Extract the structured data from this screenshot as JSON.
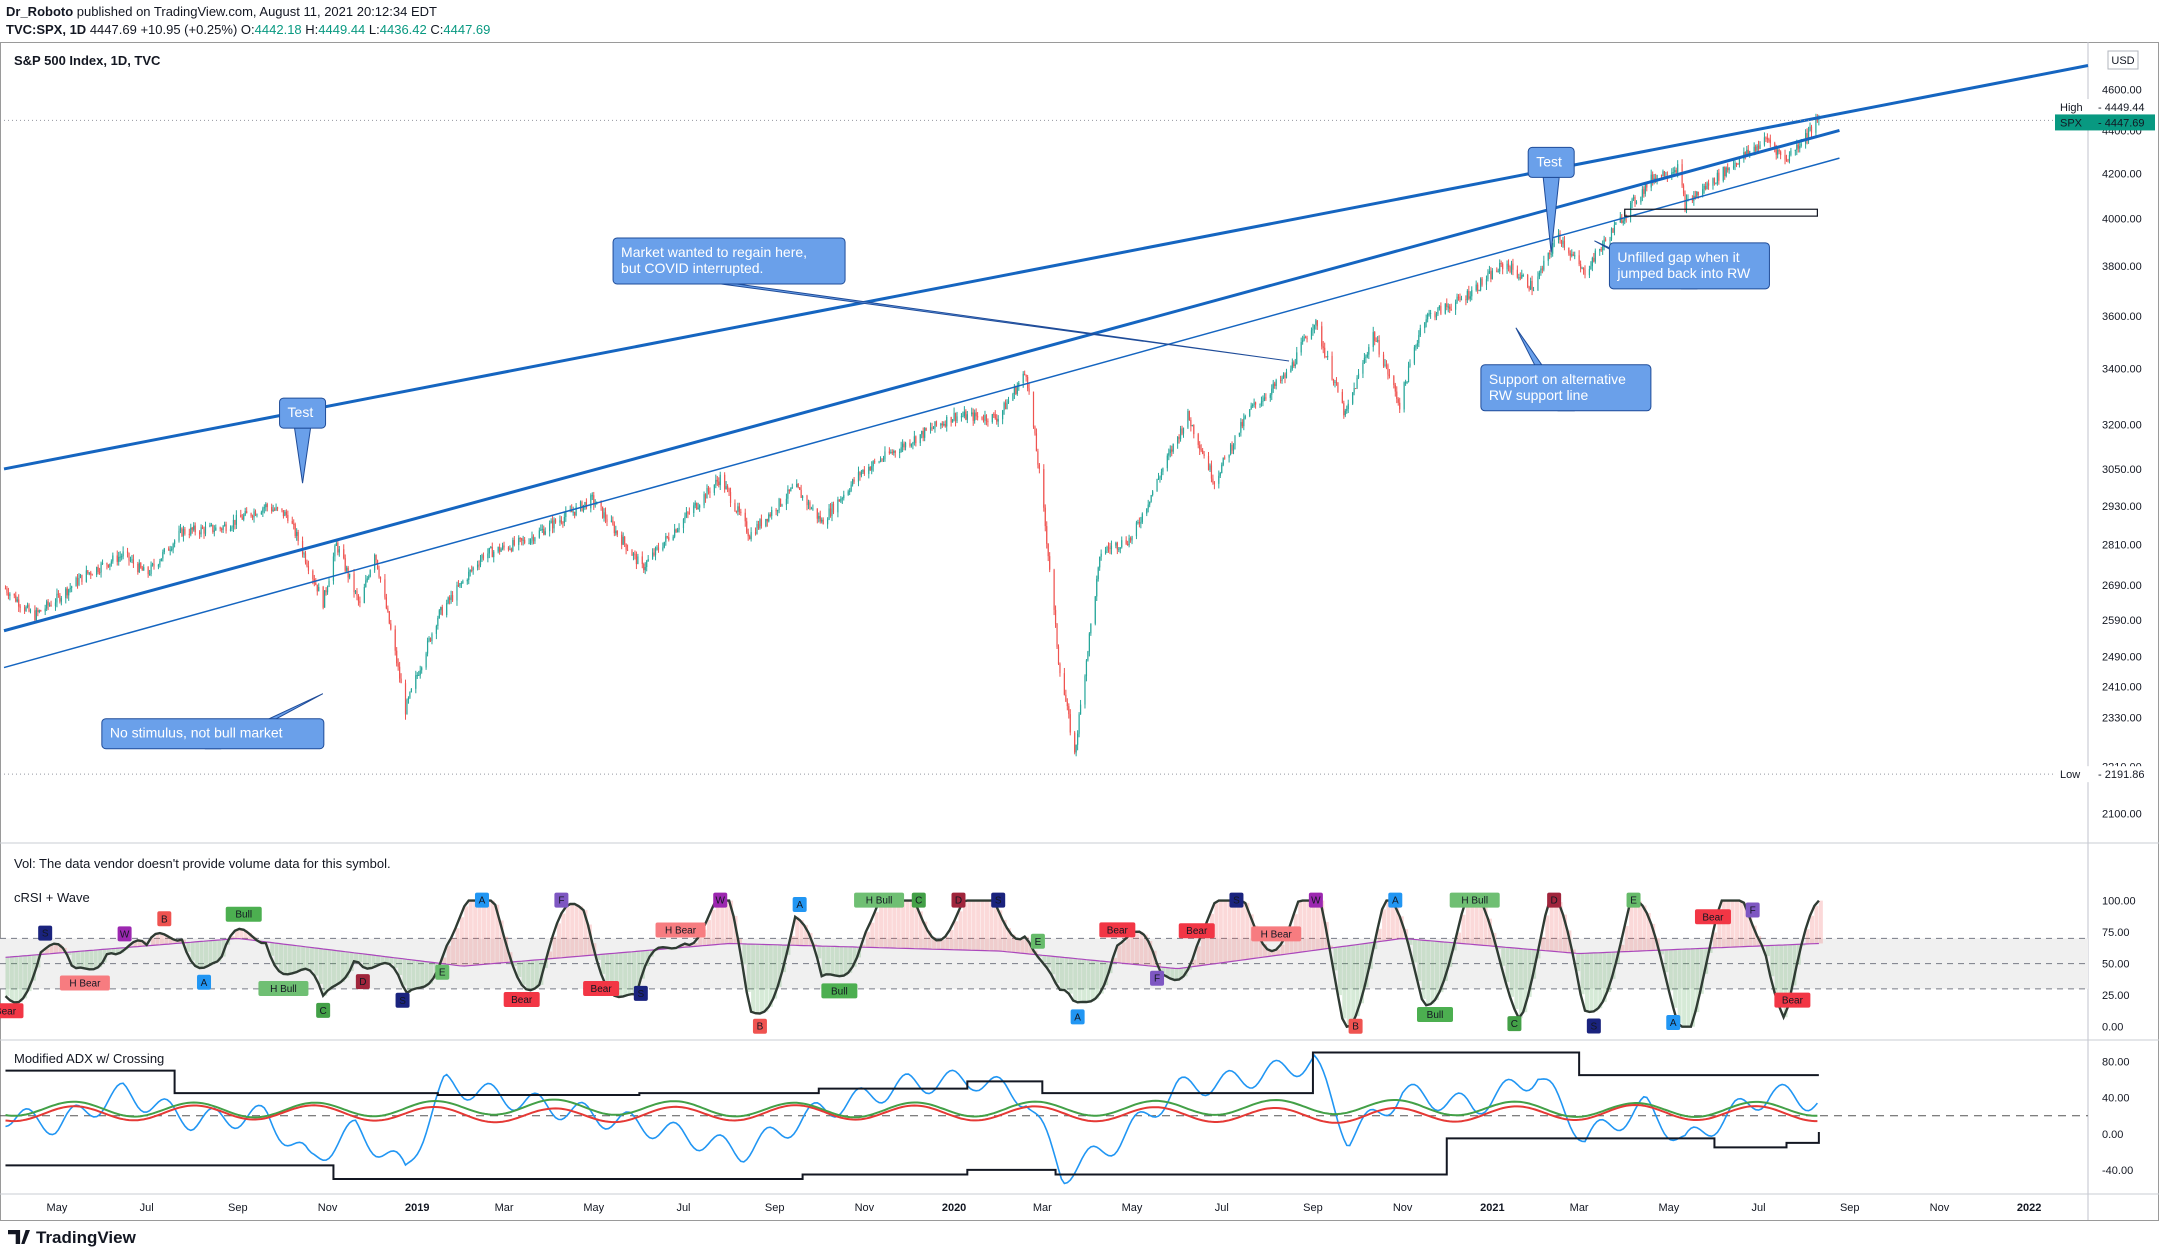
{
  "header": {
    "author": "Dr_Roboto",
    "published": "published on TradingView.com, August 11, 2021 20:12:34 EDT",
    "symbol": "TVC:SPX, 1D",
    "last": "4447.69",
    "change": "+10.95 (+0.25%)",
    "o_label": "O:",
    "o": "4442.18",
    "h_label": "H:",
    "h": "4449.44",
    "l_label": "L:",
    "l": "4436.42",
    "c_label": "C:",
    "c": "4447.69"
  },
  "footer": {
    "logo": "TradingView"
  },
  "colors": {
    "up": "#26a69a",
    "down": "#ef5350",
    "trend": "#1565c0",
    "annotation": "#6aa0ea",
    "price_tag": "#089981",
    "crsi_line": "#2f3b33",
    "adx_blue": "#2196f3",
    "adx_green": "#43a047",
    "adx_red": "#e53935"
  },
  "chart_data": [
    {
      "type": "line",
      "title": "S&P 500 Index, 1D, TVC",
      "currency": "USD",
      "y_scale": "log",
      "ylim": [
        2050,
        4800
      ],
      "y_ticks": [
        2100,
        2210,
        2330,
        2410,
        2490,
        2590,
        2690,
        2810,
        2930,
        3050,
        3200,
        3400,
        3600,
        3800,
        4000,
        4200,
        4400,
        4600
      ],
      "y_tick_labels": [
        "2100.00",
        "2210.00",
        "2330.00",
        "2410.00",
        "2490.00",
        "2590.00",
        "2690.00",
        "2810.00",
        "2930.00",
        "3050.00",
        "3200.00",
        "3400.00",
        "3600.00",
        "3800.00",
        "4000.00",
        "4200.00",
        "4400.00",
        "4600.00"
      ],
      "x_tick_labels": [
        "May",
        "Jul",
        "Sep",
        "Nov",
        "2019",
        "Mar",
        "May",
        "Jul",
        "Sep",
        "Nov",
        "2020",
        "Mar",
        "May",
        "Jul",
        "Sep",
        "Nov",
        "2021",
        "Mar",
        "May",
        "Jul",
        "Sep",
        "Nov",
        "2022"
      ],
      "x_tick_dates": [
        "2018-05-01",
        "2018-07-01",
        "2018-09-01",
        "2018-11-01",
        "2019-01-01",
        "2019-03-01",
        "2019-05-01",
        "2019-07-01",
        "2019-09-01",
        "2019-11-01",
        "2020-01-01",
        "2020-03-01",
        "2020-05-01",
        "2020-07-01",
        "2020-09-01",
        "2020-11-01",
        "2021-01-01",
        "2021-03-01",
        "2021-05-01",
        "2021-07-01",
        "2021-09-01",
        "2021-11-01",
        "2022-01-01"
      ],
      "x_range": [
        "2018-03-26",
        "2022-02-10"
      ],
      "series": [
        {
          "name": "SPX",
          "dates": [
            "2018-03-27",
            "2018-04-15",
            "2018-05-01",
            "2018-05-20",
            "2018-06-15",
            "2018-07-01",
            "2018-07-25",
            "2018-08-20",
            "2018-09-20",
            "2018-10-05",
            "2018-10-29",
            "2018-11-07",
            "2018-11-23",
            "2018-12-03",
            "2018-12-24",
            "2019-01-15",
            "2019-02-15",
            "2019-03-15",
            "2019-04-30",
            "2019-06-03",
            "2019-07-26",
            "2019-08-15",
            "2019-09-15",
            "2019-10-03",
            "2019-10-30",
            "2019-12-01",
            "2020-01-01",
            "2020-01-31",
            "2020-02-19",
            "2020-03-01",
            "2020-03-12",
            "2020-03-23",
            "2020-04-10",
            "2020-05-01",
            "2020-06-08",
            "2020-06-26",
            "2020-07-20",
            "2020-08-15",
            "2020-09-02",
            "2020-09-23",
            "2020-10-12",
            "2020-10-30",
            "2020-11-15",
            "2020-12-10",
            "2021-01-10",
            "2021-01-29",
            "2021-02-15",
            "2021-03-04",
            "2021-04-01",
            "2021-04-20",
            "2021-05-07",
            "2021-05-12",
            "2021-06-15",
            "2021-07-07",
            "2021-07-19",
            "2021-08-11"
          ],
          "values": [
            2680,
            2600,
            2650,
            2720,
            2780,
            2720,
            2850,
            2860,
            2930,
            2900,
            2640,
            2810,
            2630,
            2790,
            2350,
            2600,
            2780,
            2820,
            2950,
            2740,
            3020,
            2840,
            2990,
            2880,
            3040,
            3140,
            3230,
            3225,
            3386,
            2955,
            2480,
            2237,
            2790,
            2830,
            3230,
            3010,
            3250,
            3380,
            3580,
            3230,
            3530,
            3270,
            3590,
            3660,
            3810,
            3710,
            3930,
            3770,
            4020,
            4180,
            4230,
            4060,
            4250,
            4360,
            4260,
            4448
          ]
        },
        {
          "name": "Trend channel upper",
          "dates": [
            "2018-03-26",
            "2022-02-10"
          ],
          "values": [
            3050,
            4720
          ]
        },
        {
          "name": "Trend channel lower",
          "dates": [
            "2018-03-26",
            "2021-08-25"
          ],
          "values": [
            2560,
            4400
          ]
        },
        {
          "name": "RW support line",
          "dates": [
            "2018-03-26",
            "2021-08-25"
          ],
          "values": [
            2460,
            4270
          ]
        }
      ],
      "price_labels": [
        {
          "label": "High",
          "value": "4449.44"
        },
        {
          "label": "SPX",
          "value": "4447.69"
        },
        {
          "label": "Low",
          "value": "2191.86"
        }
      ],
      "annotations": [
        {
          "text": "Test",
          "date": "2018-10-15",
          "value": 3240
        },
        {
          "text": "No stimulus, not bull market",
          "date": "2018-08-15",
          "value": 2290
        },
        {
          "text": "Market wanted to regain here, but COVID interrupted.",
          "date": "2019-08-01",
          "value": 3820
        },
        {
          "text": "Test",
          "date": "2021-02-10",
          "value": 4250
        },
        {
          "text": "Support on alternative RW support line",
          "date": "2021-02-20",
          "value": 3330
        },
        {
          "text": "Unfilled gap when it jumped back into RW",
          "date": "2021-05-15",
          "value": 3800
        }
      ],
      "gap_box": {
        "from": "2021-04-01",
        "to": "2021-08-10",
        "low": 4010,
        "high": 4040
      }
    },
    {
      "type": "line",
      "title": "Vol: The data vendor doesn't provide volume data for this symbol.",
      "series": []
    },
    {
      "type": "line",
      "title": "cRSI + Wave",
      "ylim": [
        -5,
        110
      ],
      "y_ticks": [
        0,
        25,
        50,
        75,
        100
      ],
      "y_tick_labels": [
        "0.00",
        "25.00",
        "50.00",
        "75.00",
        "100.00"
      ],
      "bands": [
        30,
        50,
        70
      ],
      "series": [
        {
          "name": "cRSI",
          "dates": [
            "2018-03-27",
            "2018-04-20",
            "2018-05-12",
            "2018-06-05",
            "2018-07-01",
            "2018-07-25",
            "2018-08-20",
            "2018-09-20",
            "2018-10-12",
            "2018-10-29",
            "2018-11-20",
            "2018-12-24",
            "2019-01-20",
            "2019-02-20",
            "2019-03-25",
            "2019-04-25",
            "2019-05-30",
            "2019-07-01",
            "2019-07-30",
            "2019-08-15",
            "2019-09-15",
            "2019-10-03",
            "2019-11-01",
            "2019-12-01",
            "2020-01-05",
            "2020-02-01",
            "2020-02-19",
            "2020-03-12",
            "2020-03-23",
            "2020-04-20",
            "2020-05-20",
            "2020-06-15",
            "2020-07-15",
            "2020-08-15",
            "2020-09-02",
            "2020-09-23",
            "2020-10-20",
            "2020-11-15",
            "2020-12-15",
            "2021-01-20",
            "2021-02-10",
            "2021-03-04",
            "2021-04-05",
            "2021-05-12",
            "2021-06-10",
            "2021-07-05",
            "2021-07-19",
            "2021-08-11"
          ],
          "values": [
            30,
            65,
            25,
            85,
            40,
            90,
            35,
            88,
            35,
            5,
            80,
            5,
            85,
            90,
            40,
            92,
            8,
            90,
            88,
            10,
            82,
            20,
            92,
            95,
            92,
            88,
            96,
            5,
            3,
            80,
            30,
            85,
            90,
            82,
            95,
            15,
            85,
            30,
            90,
            30,
            92,
            15,
            88,
            12,
            92,
            85,
            15,
            80
          ]
        },
        {
          "name": "Wave",
          "dates": [
            "2018-03-27",
            "2018-09-01",
            "2019-02-01",
            "2019-08-01",
            "2020-02-01",
            "2020-06-01",
            "2020-11-01",
            "2021-03-01",
            "2021-08-11"
          ],
          "values": [
            55,
            70,
            48,
            66,
            60,
            46,
            70,
            58,
            66
          ]
        }
      ],
      "signals": [
        "Bear",
        "H Bear",
        "Bull",
        "H Bull",
        "A",
        "B",
        "C",
        "D",
        "E",
        "F",
        "S",
        "W"
      ]
    },
    {
      "type": "line",
      "title": "Modified ADX w/ Crossing",
      "ylim": [
        -60,
        95
      ],
      "y_ticks": [
        -40,
        0,
        40,
        80
      ],
      "y_tick_labels": [
        "-40.00",
        "0.00",
        "40.00",
        "80.00"
      ],
      "series": [
        {
          "name": "ADX",
          "dates": [
            "2018-03-27",
            "2018-05-01",
            "2018-06-15",
            "2018-08-01",
            "2018-09-20",
            "2018-10-20",
            "2018-11-20",
            "2018-12-24",
            "2019-01-20",
            "2019-03-01",
            "2019-05-01",
            "2019-06-15",
            "2019-08-10",
            "2019-10-01",
            "2019-12-01",
            "2020-01-15",
            "2020-02-19",
            "2020-03-15",
            "2020-04-20",
            "2020-06-01",
            "2020-07-15",
            "2020-09-02",
            "2020-09-25",
            "2020-11-01",
            "2020-12-20",
            "2021-02-01",
            "2021-03-05",
            "2021-04-15",
            "2021-05-12",
            "2021-06-15",
            "2021-07-10",
            "2021-08-11"
          ],
          "values": [
            20,
            10,
            45,
            15,
            20,
            -30,
            5,
            -40,
            55,
            40,
            20,
            5,
            -20,
            25,
            55,
            60,
            40,
            -45,
            -10,
            50,
            60,
            80,
            -5,
            45,
            30,
            65,
            -5,
            30,
            -10,
            25,
            45,
            35
          ]
        },
        {
          "name": "+DI",
          "dates": [
            "2018-03-27",
            "2018-10-01",
            "2019-04-01",
            "2019-10-01",
            "2020-04-01",
            "2020-10-01",
            "2021-04-01",
            "2021-08-11"
          ],
          "values": [
            28,
            26,
            30,
            26,
            28,
            30,
            26,
            28
          ]
        },
        {
          "name": "-DI",
          "dates": [
            "2018-03-27",
            "2018-10-01",
            "2019-04-01",
            "2019-10-01",
            "2020-04-01",
            "2020-10-01",
            "2021-04-01",
            "2021-08-11"
          ],
          "values": [
            22,
            24,
            20,
            24,
            22,
            20,
            24,
            22
          ]
        },
        {
          "name": "Upper channel",
          "dates": [
            "2018-03-27",
            "2018-05-15",
            "2018-07-20",
            "2019-01-15",
            "2019-06-01",
            "2019-10-01",
            "2020-01-10",
            "2020-03-01",
            "2020-09-01",
            "2021-02-01",
            "2021-03-01",
            "2021-08-11"
          ],
          "values": [
            70,
            70,
            45,
            43,
            45,
            50,
            58,
            45,
            90,
            90,
            65,
            65
          ]
        },
        {
          "name": "Lower channel",
          "dates": [
            "2018-03-27",
            "2018-10-15",
            "2018-11-05",
            "2019-06-01",
            "2019-09-20",
            "2020-01-10",
            "2020-03-10",
            "2020-10-15",
            "2020-12-01",
            "2021-06-01",
            "2021-07-20",
            "2021-08-11"
          ],
          "values": [
            -35,
            -35,
            -50,
            -50,
            -45,
            -40,
            -45,
            -45,
            -5,
            -15,
            -10,
            2
          ]
        }
      ],
      "crossing_level": 20
    }
  ]
}
